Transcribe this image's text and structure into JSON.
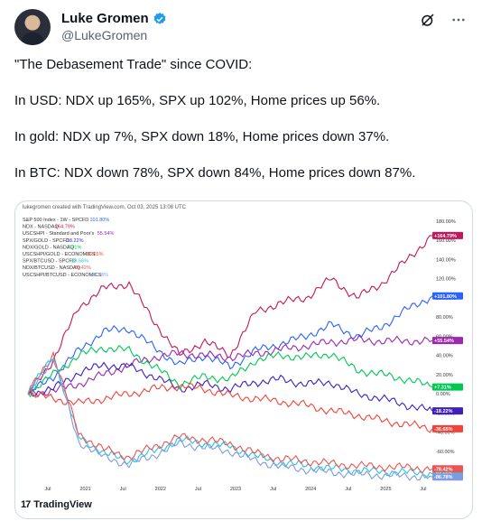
{
  "post": {
    "author_name": "Luke Gromen",
    "author_handle": "@LukeGromen",
    "paragraphs": [
      "\"The Debasement Trade\" since COVID:",
      "In USD: NDX up 165%, SPX up 102%, Home prices up 56%.",
      "In gold: NDX up 7%, SPX down 18%, Home prices down 37%.",
      "In BTC: NDX down 78%, SPX down 84%, Home prices down 87%."
    ]
  },
  "icons": {
    "verified": "verified-badge-icon",
    "grok": "grok-icon",
    "more": "more-options-icon"
  },
  "colors": {
    "verified_blue": "#1d9bf0",
    "handle_gray": "#536471"
  },
  "media": {
    "created_line": "lukegromen created with TradingView.com, Oct 03, 2025 13:08 UTC",
    "brand": "TradingView"
  },
  "chart_data": {
    "type": "line",
    "x_ticks": [
      "Jul",
      "2021",
      "Jul",
      "2022",
      "Jul",
      "2023",
      "Jul",
      "2024",
      "Jul",
      "2025",
      "Jul"
    ],
    "y_ticks": [
      "180.00%",
      "160.00%",
      "140.00%",
      "120.00%",
      "100.00%",
      "80.00%",
      "60.00%",
      "40.00%",
      "20.00%",
      "0.00%",
      "-20.00%",
      "-40.00%",
      "-60.00%",
      "-80.00%"
    ],
    "ylim": [
      -80,
      180
    ],
    "series": [
      {
        "name": "S&P 500 Index - 1W - SPCFD",
        "last": "101.80%",
        "label": "+101.80%",
        "color": "#2962ff",
        "values": [
          0,
          18,
          45,
          65,
          68,
          48,
          30,
          40,
          28,
          45,
          52,
          60,
          72,
          60,
          70,
          88,
          102
        ]
      },
      {
        "name": "NDX - NASDAQ",
        "last": "164.79%",
        "label": "+164.79%",
        "color": "#c2185b",
        "values": [
          0,
          35,
          90,
          110,
          115,
          75,
          40,
          55,
          40,
          85,
          95,
          100,
          120,
          100,
          115,
          140,
          165
        ]
      },
      {
        "name": "USCSHPI - Standard and Poor's",
        "last": "55.54%",
        "label": "+55.54%",
        "color": "#9c27b0",
        "values": [
          0,
          3,
          10,
          20,
          30,
          38,
          42,
          40,
          38,
          42,
          46,
          50,
          54,
          56,
          55,
          55,
          55.5
        ]
      },
      {
        "name": "SPX/GOLD - SPCFD",
        "last": "-18.22%",
        "label": "-18.22%",
        "color": "#3f1fbf",
        "values": [
          0,
          5,
          22,
          30,
          28,
          18,
          5,
          10,
          5,
          12,
          15,
          10,
          12,
          0,
          -5,
          -12,
          -18
        ]
      },
      {
        "name": "NDX/GOLD - NASDAQ",
        "last": "7.31%",
        "label": "+7.31%",
        "color": "#00c853",
        "values": [
          0,
          20,
          40,
          48,
          45,
          28,
          10,
          18,
          15,
          35,
          40,
          38,
          42,
          25,
          20,
          15,
          7
        ]
      },
      {
        "name": "USCSHPI/GOLD - ECONOMICS",
        "last": "-36.65%",
        "label": "-36.65%",
        "color": "#f44336",
        "values": [
          0,
          -5,
          -10,
          -5,
          0,
          5,
          8,
          5,
          -2,
          -5,
          -8,
          -12,
          -18,
          -22,
          -28,
          -32,
          -36.6
        ]
      },
      {
        "name": "SPX/BTCUSD - SPCFD",
        "last": "-83.56%",
        "label": "-83.56%",
        "color": "#26c6da",
        "values": [
          0,
          40,
          -45,
          -62,
          -70,
          -60,
          -48,
          -52,
          -55,
          -65,
          -72,
          -75,
          -78,
          -80,
          -81,
          -82,
          -83.5
        ]
      },
      {
        "name": "NDX/BTCUSD - NASDAQ",
        "last": "-78.42%",
        "label": "-78.42%",
        "color": "#ef5350",
        "values": [
          0,
          42,
          -42,
          -58,
          -66,
          -55,
          -45,
          -48,
          -52,
          -62,
          -68,
          -70,
          -73,
          -75,
          -76,
          -77,
          -78.4
        ]
      },
      {
        "name": "USCSHPI/BTCUSD - ECONOMICS",
        "last": "-86.78%",
        "label": "-86.78%",
        "color": "#7e9be0",
        "values": [
          0,
          38,
          -50,
          -66,
          -74,
          -64,
          -52,
          -56,
          -60,
          -70,
          -76,
          -79,
          -82,
          -84,
          -85,
          -86,
          -86.8
        ]
      }
    ],
    "legend_placement": "top-left"
  }
}
